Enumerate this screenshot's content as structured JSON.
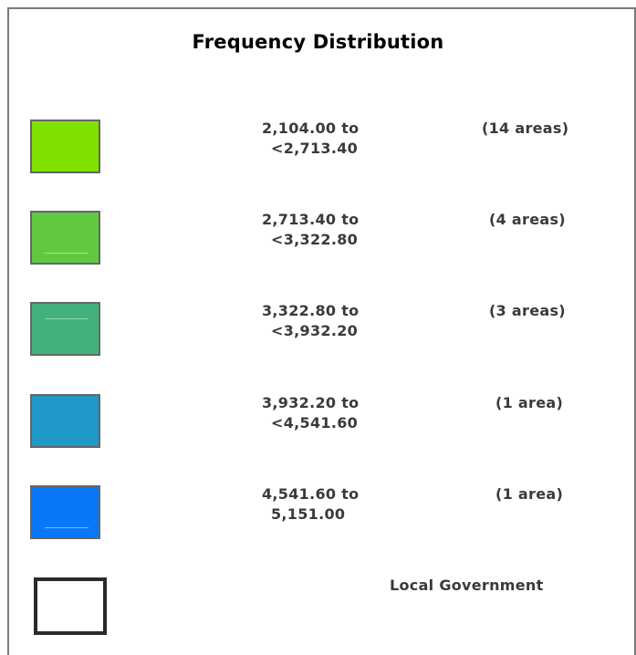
{
  "title": "Frequency Distribution",
  "legend": [
    {
      "range_line1": "2,104.00 to",
      "range_line2": "<2,713.40",
      "count": "(14 areas)",
      "color": "#80e000"
    },
    {
      "range_line1": "2,713.40 to",
      "range_line2": "<3,322.80",
      "count": "(4 areas)",
      "color": "#62c840"
    },
    {
      "range_line1": "3,322.80 to",
      "range_line2": "<3,932.20",
      "count": "(3 areas)",
      "color": "#42b27a"
    },
    {
      "range_line1": "3,932.20 to",
      "range_line2": "<4,541.60",
      "count": "(1 area)",
      "color": "#2098c8"
    },
    {
      "range_line1": "4,541.60 to",
      "range_line2": "5,151.00",
      "count": "(1 area)",
      "color": "#0a78f6"
    }
  ],
  "boundary": {
    "label": "Local Government",
    "border_color": "#2a2a2a"
  }
}
